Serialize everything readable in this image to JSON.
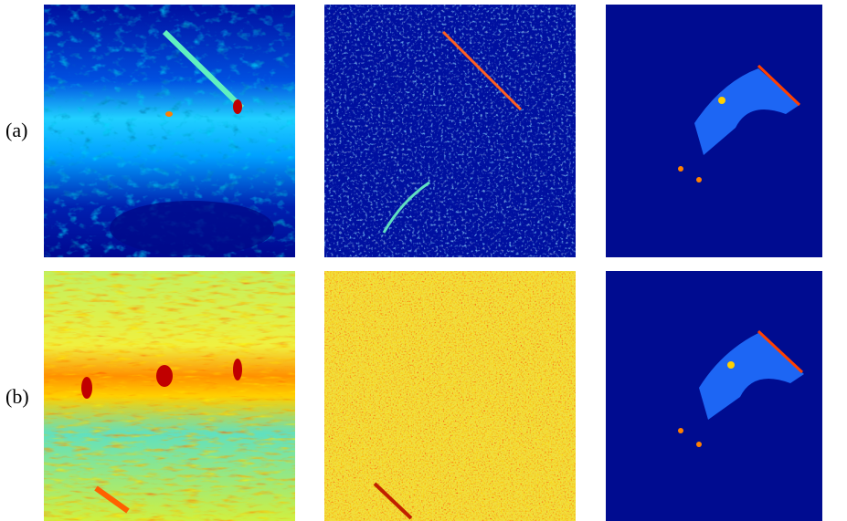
{
  "rows": [
    {
      "label": "(a)"
    },
    {
      "label": "(b)"
    }
  ]
}
